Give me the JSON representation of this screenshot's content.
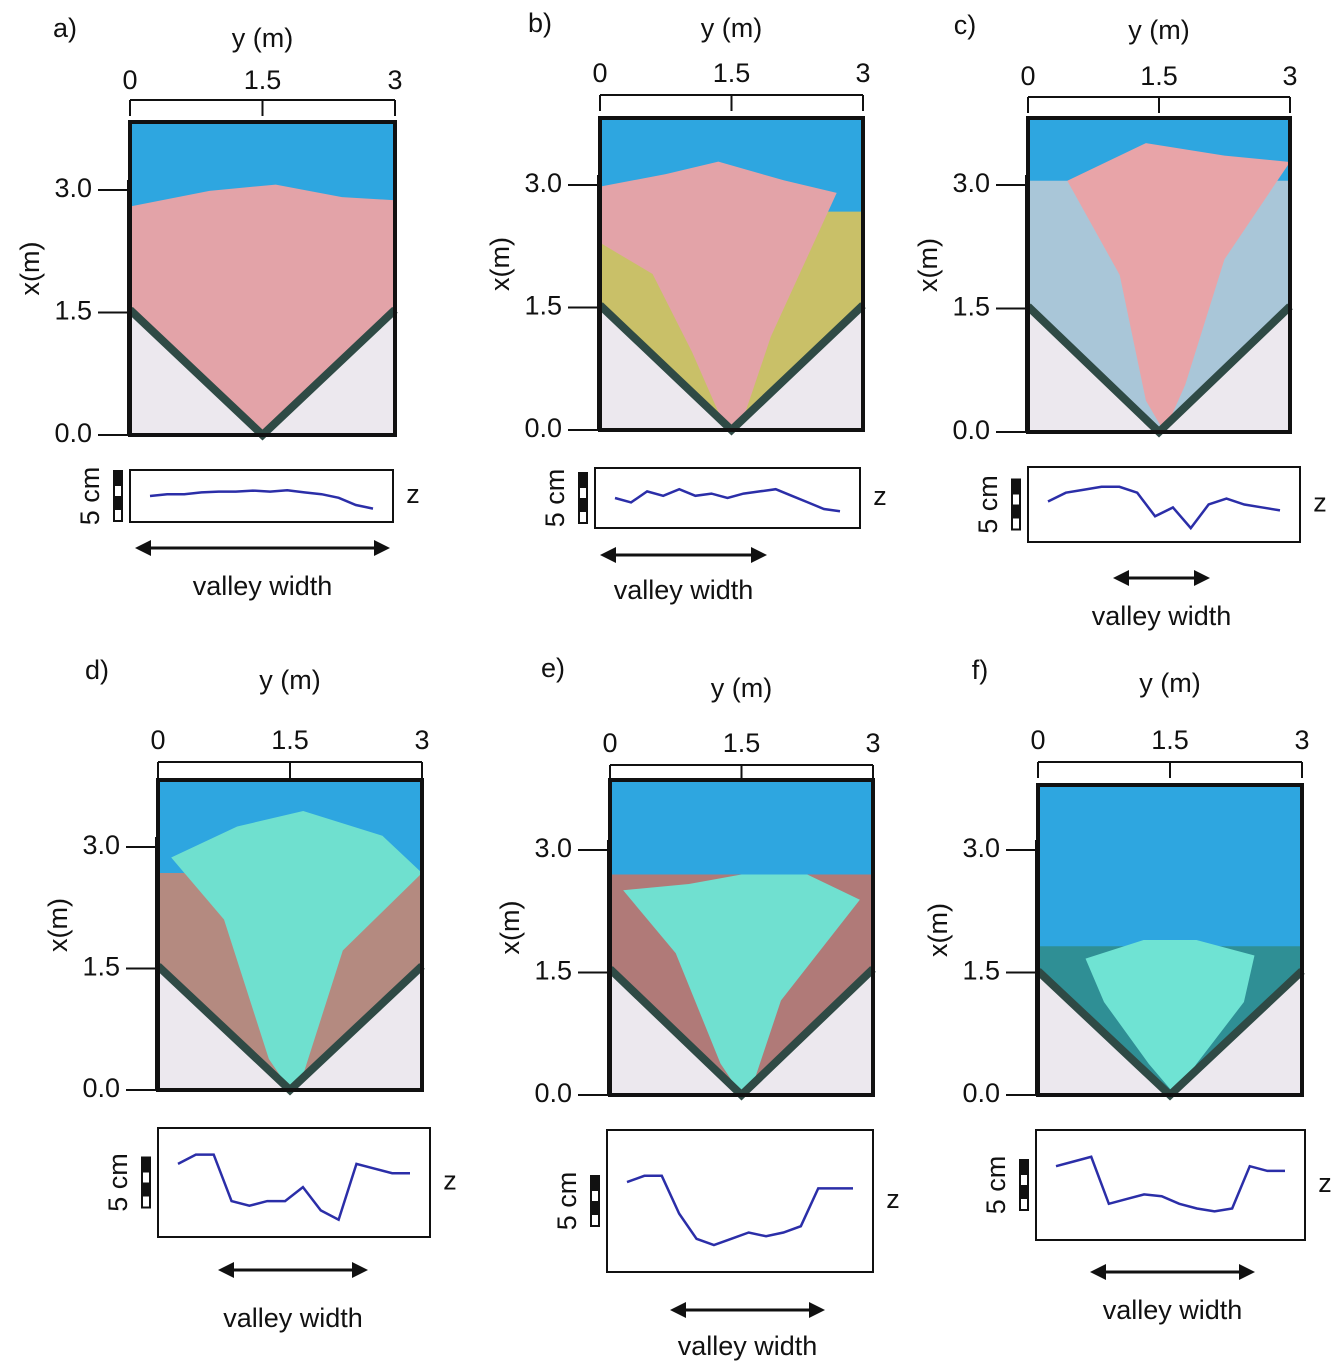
{
  "panels": [
    {
      "label": "a)",
      "y_axis_label": "y (m)",
      "x_axis_label": "x(m)",
      "yticks": [
        0,
        1.5,
        3
      ],
      "xticks": [
        {
          "value": 3,
          "label": "3.0"
        },
        {
          "value": 1.5,
          "label": "1.5"
        },
        {
          "value": 0,
          "label": "0.0"
        }
      ],
      "scale_label": "5 cm",
      "z_label": "z",
      "width_label": "valley width"
    },
    {
      "label": "b)",
      "y_axis_label": "y (m)",
      "x_axis_label": "x(m)",
      "yticks": [
        0,
        1.5,
        3
      ],
      "xticks": [
        {
          "value": 3,
          "label": "3.0"
        },
        {
          "value": 1.5,
          "label": "1.5"
        },
        {
          "value": 0,
          "label": "0.0"
        }
      ],
      "scale_label": "5 cm",
      "z_label": "z",
      "width_label": "valley width"
    },
    {
      "label": "c)",
      "y_axis_label": "y (m)",
      "x_axis_label": "x(m)",
      "yticks": [
        0,
        1.5,
        3
      ],
      "xticks": [
        {
          "value": 3,
          "label": "3.0"
        },
        {
          "value": 1.5,
          "label": "1.5"
        },
        {
          "value": 0,
          "label": "0.0"
        }
      ],
      "scale_label": "5 cm",
      "z_label": "z",
      "width_label": "valley width"
    },
    {
      "label": "d)",
      "y_axis_label": "y (m)",
      "x_axis_label": "x(m)",
      "yticks": [
        0,
        1.5,
        3
      ],
      "xticks": [
        {
          "value": 3,
          "label": "3.0"
        },
        {
          "value": 1.5,
          "label": "1.5"
        },
        {
          "value": 0,
          "label": "0.0"
        }
      ],
      "scale_label": "5 cm",
      "z_label": "z",
      "width_label": "valley width"
    },
    {
      "label": "e)",
      "y_axis_label": "y (m)",
      "x_axis_label": "x(m)",
      "yticks": [
        0,
        1.5,
        3
      ],
      "xticks": [
        {
          "value": 3,
          "label": "3.0"
        },
        {
          "value": 1.5,
          "label": "1.5"
        },
        {
          "value": 0,
          "label": "0.0"
        }
      ],
      "scale_label": "5 cm",
      "z_label": "z",
      "width_label": "valley width"
    },
    {
      "label": "f)",
      "y_axis_label": "y (m)",
      "x_axis_label": "x(m)",
      "yticks": [
        0,
        1.5,
        3
      ],
      "xticks": [
        {
          "value": 3,
          "label": "3.0"
        },
        {
          "value": 1.5,
          "label": "1.5"
        },
        {
          "value": 0,
          "label": "0.0"
        }
      ],
      "scale_label": "5 cm",
      "z_label": "z",
      "width_label": "valley width"
    }
  ]
}
